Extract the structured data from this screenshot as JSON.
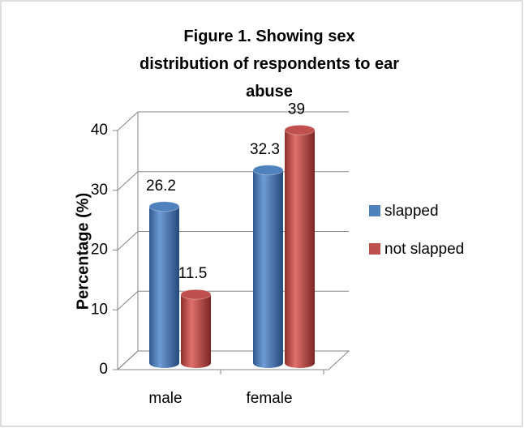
{
  "chart_data": {
    "type": "bar3d",
    "title": "Figure 1. Showing sex distribution of respondents to ear abuse",
    "y_label": "Percentage (%)",
    "categories": [
      "male",
      "female"
    ],
    "series": [
      {
        "name": "slapped",
        "color": "#4f81bd",
        "values": [
          26.2,
          32.3
        ]
      },
      {
        "name": "not slapped",
        "color": "#c0504d",
        "values": [
          11.5,
          39
        ]
      }
    ],
    "ylim": [
      0,
      40
    ],
    "yticks": [
      0,
      10,
      20,
      30,
      40
    ],
    "grid": true,
    "legend": "right"
  }
}
